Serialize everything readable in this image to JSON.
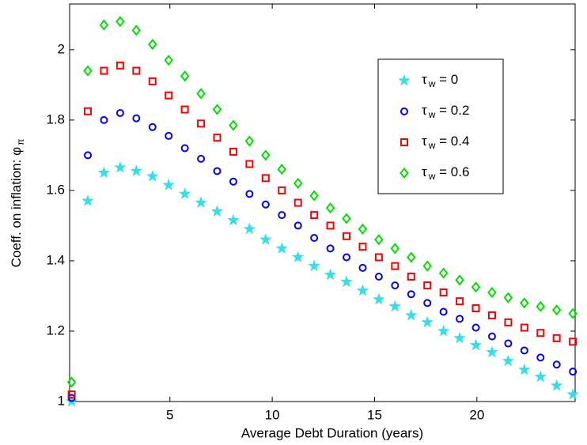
{
  "chart_data": {
    "type": "scatter",
    "xlabel": "Average Debt Duration (years)",
    "ylabel": "Coeff. on inflation: φπ",
    "x": [
      0.2,
      0.99,
      1.78,
      2.57,
      3.36,
      4.15,
      4.94,
      5.73,
      6.52,
      7.31,
      8.1,
      8.89,
      9.68,
      10.47,
      11.26,
      12.05,
      12.84,
      13.63,
      14.42,
      15.21,
      16.0,
      16.79,
      17.58,
      18.37,
      19.16,
      19.95,
      20.74,
      21.53,
      22.32,
      23.11,
      23.9,
      24.69
    ],
    "series": [
      {
        "name": "τw = 0",
        "color": "#33e0e6",
        "marker": "star",
        "values": [
          1.0,
          1.57,
          1.65,
          1.665,
          1.655,
          1.64,
          1.615,
          1.59,
          1.565,
          1.54,
          1.515,
          1.49,
          1.46,
          1.435,
          1.41,
          1.385,
          1.36,
          1.34,
          1.315,
          1.29,
          1.27,
          1.245,
          1.225,
          1.2,
          1.18,
          1.16,
          1.14,
          1.115,
          1.09,
          1.07,
          1.045,
          1.02
        ]
      },
      {
        "name": "τw = 0.2",
        "color": "#0000ff",
        "marker": "circle",
        "values": [
          1.01,
          1.7,
          1.8,
          1.82,
          1.805,
          1.78,
          1.755,
          1.72,
          1.69,
          1.655,
          1.625,
          1.59,
          1.56,
          1.53,
          1.5,
          1.465,
          1.435,
          1.41,
          1.38,
          1.355,
          1.33,
          1.305,
          1.28,
          1.255,
          1.235,
          1.21,
          1.185,
          1.165,
          1.145,
          1.125,
          1.105,
          1.085
        ]
      },
      {
        "name": "τw = 0.4",
        "color": "#ff0000",
        "marker": "square",
        "values": [
          1.02,
          1.825,
          1.94,
          1.955,
          1.94,
          1.91,
          1.87,
          1.83,
          1.79,
          1.75,
          1.71,
          1.675,
          1.635,
          1.6,
          1.565,
          1.53,
          1.5,
          1.47,
          1.44,
          1.41,
          1.385,
          1.355,
          1.33,
          1.31,
          1.285,
          1.265,
          1.245,
          1.225,
          1.21,
          1.195,
          1.18,
          1.17
        ]
      },
      {
        "name": "τw = 0.6",
        "color": "#00e000",
        "marker": "diamond",
        "values": [
          1.055,
          1.94,
          2.07,
          2.08,
          2.055,
          2.015,
          1.97,
          1.925,
          1.875,
          1.83,
          1.785,
          1.74,
          1.7,
          1.66,
          1.62,
          1.585,
          1.55,
          1.52,
          1.49,
          1.46,
          1.435,
          1.41,
          1.385,
          1.365,
          1.345,
          1.325,
          1.31,
          1.295,
          1.28,
          1.27,
          1.26,
          1.25
        ]
      }
    ],
    "xlim": [
      0.1,
      24.8
    ],
    "xticks": [
      5,
      10,
      15,
      20
    ],
    "ylim": [
      1,
      2.13
    ],
    "yticks": [
      1,
      1.2,
      1.4,
      1.6,
      1.8,
      2
    ],
    "grid": false,
    "legend": "upper right"
  }
}
